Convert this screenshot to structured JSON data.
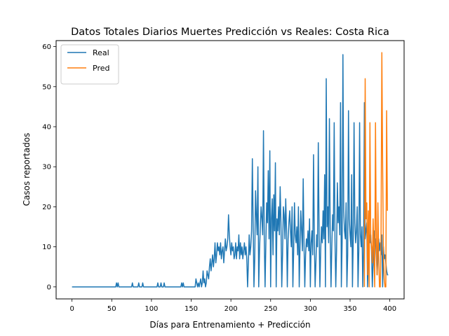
{
  "chart_data": {
    "type": "line",
    "title": "Datos Totales Diarios Muertes Predicción vs Reales: Costa Rica",
    "xlabel": "Días para Entrenamiento + Predicción",
    "ylabel": "Casos reportados",
    "xlim": [
      -20,
      418
    ],
    "ylim": [
      -3,
      61.5
    ],
    "xticks": [
      0,
      50,
      100,
      150,
      200,
      250,
      300,
      350,
      400
    ],
    "yticks": [
      0,
      10,
      20,
      30,
      40,
      50,
      60
    ],
    "grid": false,
    "legend_position": "top-left",
    "series": [
      {
        "name": "Real",
        "color": "#1f77b4",
        "points": [
          [
            0,
            0
          ],
          [
            55,
            0
          ],
          [
            56,
            1
          ],
          [
            57,
            0
          ],
          [
            58,
            1
          ],
          [
            59,
            0
          ],
          [
            75,
            0
          ],
          [
            76,
            1
          ],
          [
            77,
            0
          ],
          [
            83,
            0
          ],
          [
            84,
            1
          ],
          [
            85,
            0
          ],
          [
            88,
            0
          ],
          [
            89,
            1
          ],
          [
            90,
            0
          ],
          [
            107,
            0
          ],
          [
            108,
            1
          ],
          [
            109,
            0
          ],
          [
            111,
            0
          ],
          [
            112,
            1
          ],
          [
            113,
            0
          ],
          [
            115,
            0
          ],
          [
            116,
            1
          ],
          [
            117,
            0
          ],
          [
            137,
            0
          ],
          [
            138,
            1
          ],
          [
            139,
            0
          ],
          [
            140,
            1
          ],
          [
            141,
            0
          ],
          [
            155,
            0
          ],
          [
            156,
            2
          ],
          [
            157,
            1
          ],
          [
            158,
            0
          ],
          [
            159,
            1
          ],
          [
            160,
            0
          ],
          [
            161,
            1
          ],
          [
            162,
            2
          ],
          [
            163,
            0
          ],
          [
            164,
            1
          ],
          [
            165,
            4
          ],
          [
            166,
            1
          ],
          [
            167,
            2
          ],
          [
            168,
            0
          ],
          [
            169,
            1
          ],
          [
            170,
            4
          ],
          [
            171,
            3
          ],
          [
            172,
            2
          ],
          [
            173,
            5
          ],
          [
            174,
            7
          ],
          [
            175,
            4
          ],
          [
            176,
            6
          ],
          [
            177,
            8
          ],
          [
            178,
            5
          ],
          [
            179,
            7
          ],
          [
            180,
            11
          ],
          [
            181,
            6
          ],
          [
            182,
            8
          ],
          [
            183,
            11
          ],
          [
            184,
            9
          ],
          [
            185,
            10
          ],
          [
            186,
            8
          ],
          [
            187,
            11
          ],
          [
            188,
            7
          ],
          [
            189,
            9
          ],
          [
            190,
            10
          ],
          [
            191,
            6
          ],
          [
            192,
            9
          ],
          [
            193,
            12
          ],
          [
            194,
            9
          ],
          [
            195,
            10
          ],
          [
            196,
            12
          ],
          [
            197,
            18
          ],
          [
            198,
            13
          ],
          [
            199,
            10
          ],
          [
            200,
            8
          ],
          [
            201,
            11
          ],
          [
            202,
            9
          ],
          [
            203,
            10
          ],
          [
            204,
            7
          ],
          [
            205,
            8
          ],
          [
            206,
            11
          ],
          [
            207,
            7
          ],
          [
            208,
            10
          ],
          [
            209,
            9
          ],
          [
            210,
            13
          ],
          [
            211,
            7
          ],
          [
            212,
            11
          ],
          [
            213,
            8
          ],
          [
            214,
            10
          ],
          [
            215,
            7
          ],
          [
            216,
            9
          ],
          [
            217,
            11
          ],
          [
            218,
            8
          ],
          [
            219,
            10
          ],
          [
            220,
            7
          ],
          [
            221,
            0
          ],
          [
            222,
            6
          ],
          [
            223,
            13
          ],
          [
            224,
            8
          ],
          [
            225,
            10
          ],
          [
            226,
            14
          ],
          [
            227,
            32
          ],
          [
            228,
            16
          ],
          [
            229,
            0
          ],
          [
            230,
            7
          ],
          [
            231,
            24
          ],
          [
            232,
            18
          ],
          [
            233,
            13
          ],
          [
            234,
            30
          ],
          [
            235,
            0
          ],
          [
            236,
            9
          ],
          [
            237,
            15
          ],
          [
            238,
            20
          ],
          [
            239,
            17
          ],
          [
            240,
            13
          ],
          [
            241,
            39
          ],
          [
            242,
            12
          ],
          [
            243,
            0
          ],
          [
            244,
            11
          ],
          [
            245,
            21
          ],
          [
            246,
            16
          ],
          [
            247,
            29
          ],
          [
            248,
            12
          ],
          [
            249,
            34
          ],
          [
            250,
            0
          ],
          [
            251,
            17
          ],
          [
            252,
            22
          ],
          [
            253,
            8
          ],
          [
            254,
            23
          ],
          [
            255,
            14
          ],
          [
            256,
            31
          ],
          [
            257,
            0
          ],
          [
            258,
            17
          ],
          [
            259,
            14
          ],
          [
            260,
            20
          ],
          [
            261,
            13
          ],
          [
            262,
            25
          ],
          [
            263,
            16
          ],
          [
            264,
            0
          ],
          [
            265,
            8
          ],
          [
            266,
            20
          ],
          [
            267,
            18
          ],
          [
            268,
            12
          ],
          [
            269,
            22
          ],
          [
            270,
            14
          ],
          [
            271,
            0
          ],
          [
            272,
            12
          ],
          [
            273,
            16
          ],
          [
            274,
            19
          ],
          [
            275,
            14
          ],
          [
            276,
            10
          ],
          [
            277,
            20
          ],
          [
            278,
            0
          ],
          [
            279,
            9
          ],
          [
            280,
            21
          ],
          [
            281,
            13
          ],
          [
            282,
            11
          ],
          [
            283,
            15
          ],
          [
            284,
            8
          ],
          [
            285,
            20
          ],
          [
            286,
            0
          ],
          [
            287,
            10
          ],
          [
            288,
            19
          ],
          [
            289,
            14
          ],
          [
            290,
            9
          ],
          [
            291,
            27
          ],
          [
            292,
            11
          ],
          [
            293,
            0
          ],
          [
            294,
            8
          ],
          [
            295,
            12
          ],
          [
            296,
            10
          ],
          [
            297,
            14
          ],
          [
            298,
            9
          ],
          [
            299,
            17
          ],
          [
            300,
            0
          ],
          [
            301,
            11
          ],
          [
            302,
            14
          ],
          [
            303,
            8
          ],
          [
            304,
            33
          ],
          [
            305,
            12
          ],
          [
            306,
            0
          ],
          [
            307,
            6
          ],
          [
            308,
            13
          ],
          [
            309,
            10
          ],
          [
            310,
            36
          ],
          [
            311,
            14
          ],
          [
            312,
            0
          ],
          [
            313,
            9
          ],
          [
            314,
            15
          ],
          [
            315,
            11
          ],
          [
            316,
            19
          ],
          [
            317,
            12
          ],
          [
            318,
            28
          ],
          [
            319,
            0
          ],
          [
            320,
            52
          ],
          [
            321,
            15
          ],
          [
            322,
            20
          ],
          [
            323,
            11
          ],
          [
            324,
            42
          ],
          [
            325,
            13
          ],
          [
            326,
            0
          ],
          [
            327,
            10
          ],
          [
            328,
            18
          ],
          [
            329,
            14
          ],
          [
            330,
            41
          ],
          [
            331,
            12
          ],
          [
            332,
            0
          ],
          [
            333,
            9
          ],
          [
            334,
            26
          ],
          [
            335,
            16
          ],
          [
            336,
            20
          ],
          [
            337,
            13
          ],
          [
            338,
            46
          ],
          [
            339,
            0
          ],
          [
            340,
            11
          ],
          [
            341,
            58
          ],
          [
            342,
            19
          ],
          [
            343,
            14
          ],
          [
            344,
            12
          ],
          [
            345,
            21
          ],
          [
            346,
            0
          ],
          [
            347,
            8
          ],
          [
            348,
            44
          ],
          [
            349,
            17
          ],
          [
            350,
            13
          ],
          [
            351,
            10
          ],
          [
            352,
            28
          ],
          [
            353,
            0
          ],
          [
            354,
            12
          ],
          [
            355,
            41
          ],
          [
            356,
            16
          ],
          [
            357,
            11
          ],
          [
            358,
            14
          ],
          [
            359,
            20
          ],
          [
            360,
            0
          ],
          [
            361,
            9
          ],
          [
            362,
            41
          ],
          [
            363,
            13
          ],
          [
            364,
            10
          ],
          [
            365,
            15
          ],
          [
            366,
            0
          ],
          [
            367,
            9
          ],
          [
            368,
            46
          ],
          [
            369,
            12
          ],
          [
            370,
            14
          ],
          [
            371,
            16
          ],
          [
            372,
            0
          ],
          [
            373,
            8
          ],
          [
            374,
            15
          ],
          [
            375,
            11
          ],
          [
            376,
            13
          ],
          [
            377,
            9
          ],
          [
            378,
            0
          ],
          [
            379,
            6
          ],
          [
            380,
            14
          ],
          [
            381,
            10
          ],
          [
            382,
            12
          ],
          [
            383,
            8
          ],
          [
            384,
            3
          ],
          [
            385,
            7
          ],
          [
            386,
            12
          ],
          [
            387,
            9
          ],
          [
            388,
            11
          ],
          [
            389,
            8
          ],
          [
            390,
            13
          ],
          [
            391,
            0
          ],
          [
            392,
            10
          ],
          [
            393,
            7
          ],
          [
            394,
            8
          ],
          [
            395,
            6
          ],
          [
            396,
            4
          ],
          [
            397,
            3
          ],
          [
            398,
            3
          ]
        ]
      },
      {
        "name": "Pred",
        "color": "#ff7f0e",
        "points": [
          [
            368,
            0
          ],
          [
            369,
            52
          ],
          [
            370,
            17
          ],
          [
            371,
            21
          ],
          [
            372,
            3
          ],
          [
            373,
            19
          ],
          [
            374,
            0
          ],
          [
            375,
            41
          ],
          [
            376,
            12
          ],
          [
            377,
            10
          ],
          [
            378,
            6
          ],
          [
            379,
            17
          ],
          [
            380,
            9
          ],
          [
            381,
            0
          ],
          [
            382,
            41
          ],
          [
            383,
            11
          ],
          [
            384,
            3
          ],
          [
            385,
            21
          ],
          [
            386,
            8
          ],
          [
            387,
            0
          ],
          [
            388,
            0
          ],
          [
            389,
            13
          ],
          [
            390,
            58.5
          ],
          [
            391,
            30
          ],
          [
            392,
            8
          ],
          [
            393,
            2
          ],
          [
            394,
            0
          ],
          [
            395,
            0
          ],
          [
            396,
            44
          ],
          [
            397,
            19
          ]
        ]
      }
    ]
  }
}
